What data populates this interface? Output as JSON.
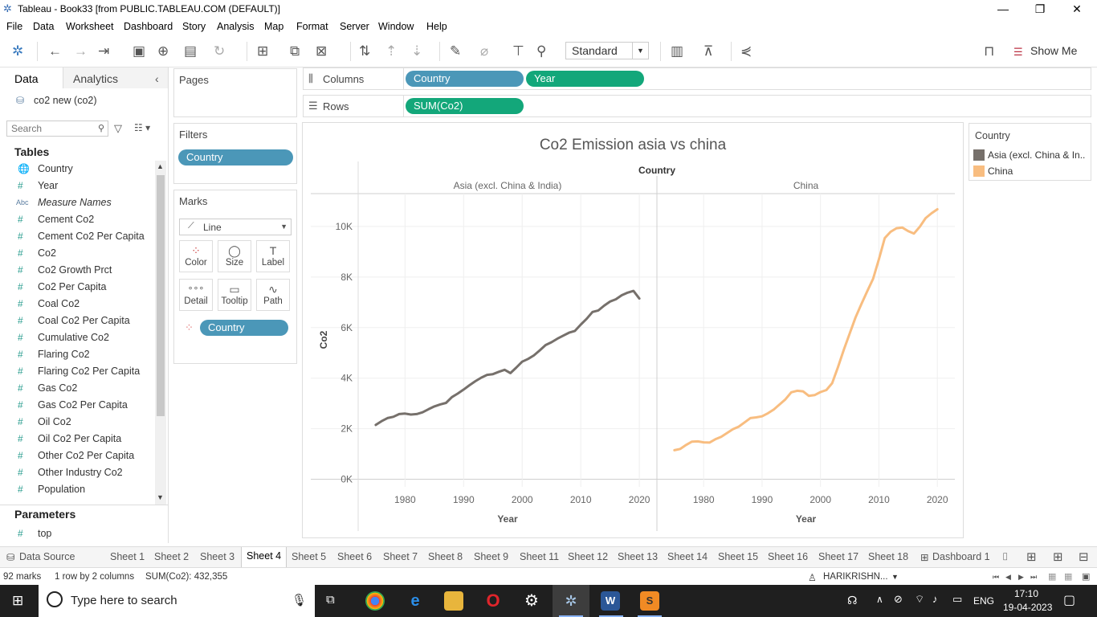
{
  "window": {
    "title": "Tableau - Book33 [from PUBLIC.TABLEAU.COM (DEFAULT)]",
    "controls": [
      "—",
      "❐",
      "✕"
    ]
  },
  "menu": [
    "File",
    "Data",
    "Worksheet",
    "Dashboard",
    "Story",
    "Analysis",
    "Map",
    "Format",
    "Server",
    "Window",
    "Help"
  ],
  "toolbar": {
    "fit_select": "Standard",
    "show_me": "Show Me"
  },
  "data_pane": {
    "tabs": [
      "Data",
      "Analytics"
    ],
    "collapse": "‹",
    "datasource": "co2 new (co2)",
    "search_placeholder": "Search",
    "tables_heading": "Tables",
    "fields": [
      {
        "icon": "🌐",
        "name": "Country"
      },
      {
        "icon": "#",
        "name": "Year"
      },
      {
        "icon": "Abc",
        "name": "Measure Names"
      },
      {
        "icon": "#",
        "name": "Cement Co2"
      },
      {
        "icon": "#",
        "name": "Cement Co2 Per Capita"
      },
      {
        "icon": "#",
        "name": "Co2"
      },
      {
        "icon": "#",
        "name": "Co2 Growth Prct"
      },
      {
        "icon": "#",
        "name": "Co2 Per Capita"
      },
      {
        "icon": "#",
        "name": "Coal Co2"
      },
      {
        "icon": "#",
        "name": "Coal Co2 Per Capita"
      },
      {
        "icon": "#",
        "name": "Cumulative Co2"
      },
      {
        "icon": "#",
        "name": "Flaring Co2"
      },
      {
        "icon": "#",
        "name": "Flaring Co2 Per Capita"
      },
      {
        "icon": "#",
        "name": "Gas Co2"
      },
      {
        "icon": "#",
        "name": "Gas Co2 Per Capita"
      },
      {
        "icon": "#",
        "name": "Oil Co2"
      },
      {
        "icon": "#",
        "name": "Oil Co2 Per Capita"
      },
      {
        "icon": "#",
        "name": "Other Co2 Per Capita"
      },
      {
        "icon": "#",
        "name": "Other Industry Co2"
      },
      {
        "icon": "#",
        "name": "Population"
      }
    ],
    "parameters_heading": "Parameters",
    "parameters": [
      {
        "icon": "#",
        "name": "top"
      }
    ]
  },
  "cards": {
    "pages": "Pages",
    "filters": "Filters",
    "filter_pill": "Country",
    "marks": "Marks",
    "mark_type": "Line",
    "mark_buttons": [
      {
        "glyph": "⁘",
        "label": "Color"
      },
      {
        "glyph": "◯",
        "label": "Size"
      },
      {
        "glyph": "T",
        "label": "Label"
      },
      {
        "glyph": "∘∘∘",
        "label": "Detail"
      },
      {
        "glyph": "▭",
        "label": "Tooltip"
      },
      {
        "glyph": "∿",
        "label": "Path"
      }
    ],
    "color_pill": "Country"
  },
  "shelves": {
    "columns_label": "Columns",
    "columns_pills": [
      "Country",
      "Year"
    ],
    "rows_label": "Rows",
    "rows_pills": [
      "SUM(Co2)"
    ]
  },
  "legend": {
    "title": "Country",
    "items": [
      {
        "label": "Asia (excl. China & In..",
        "color": "#76706b"
      },
      {
        "label": "China",
        "color": "#f8bd80"
      }
    ]
  },
  "chart_data": {
    "type": "line",
    "title": "Co2 Emission asia vs china",
    "header": "Country",
    "panels": [
      "Asia (excl. China & India)",
      "China"
    ],
    "xlabel": "Year",
    "ylabel": "Co2",
    "x_ticks": [
      1980,
      1990,
      2000,
      2010,
      2020
    ],
    "y_ticks": [
      0,
      2000,
      4000,
      6000,
      8000,
      10000
    ],
    "y_tick_labels": [
      "0K",
      "2K",
      "4K",
      "6K",
      "8K",
      "10K"
    ],
    "xlim": [
      1972,
      2023
    ],
    "ylim": [
      -300,
      11300
    ],
    "grid": true,
    "series": [
      {
        "name": "Asia (excl. China & India)",
        "color": "#76706b",
        "x": [
          1975,
          1976,
          1977,
          1978,
          1979,
          1980,
          1981,
          1982,
          1983,
          1984,
          1985,
          1986,
          1987,
          1988,
          1989,
          1990,
          1991,
          1992,
          1993,
          1994,
          1995,
          1996,
          1997,
          1998,
          1999,
          2000,
          2001,
          2002,
          2003,
          2004,
          2005,
          2006,
          2007,
          2008,
          2009,
          2010,
          2011,
          2012,
          2013,
          2014,
          2015,
          2016,
          2017,
          2018,
          2019,
          2020
        ],
        "values": [
          2150,
          2300,
          2420,
          2470,
          2580,
          2600,
          2560,
          2580,
          2650,
          2770,
          2880,
          2960,
          3020,
          3250,
          3390,
          3550,
          3720,
          3880,
          4020,
          4130,
          4160,
          4250,
          4330,
          4200,
          4420,
          4650,
          4760,
          4900,
          5100,
          5310,
          5420,
          5560,
          5680,
          5800,
          5870,
          6120,
          6350,
          6620,
          6680,
          6870,
          7030,
          7120,
          7280,
          7380,
          7450,
          7150
        ]
      },
      {
        "name": "China",
        "color": "#f8bd80",
        "x": [
          1975,
          1976,
          1977,
          1978,
          1979,
          1980,
          1981,
          1982,
          1983,
          1984,
          1985,
          1986,
          1987,
          1988,
          1989,
          1990,
          1991,
          1992,
          1993,
          1994,
          1995,
          1996,
          1997,
          1998,
          1999,
          2000,
          2001,
          2002,
          2003,
          2004,
          2005,
          2006,
          2007,
          2008,
          2009,
          2010,
          2011,
          2012,
          2013,
          2014,
          2015,
          2016,
          2017,
          2018,
          2019,
          2020
        ],
        "values": [
          1150,
          1200,
          1360,
          1490,
          1500,
          1460,
          1450,
          1580,
          1680,
          1830,
          1980,
          2080,
          2250,
          2420,
          2450,
          2490,
          2610,
          2760,
          2960,
          3160,
          3440,
          3500,
          3480,
          3300,
          3330,
          3450,
          3530,
          3800,
          4440,
          5130,
          5770,
          6400,
          6930,
          7440,
          7930,
          8700,
          9540,
          9790,
          9930,
          9960,
          9820,
          9720,
          9990,
          10330,
          10520,
          10680
        ]
      }
    ]
  },
  "sheet_tabs": [
    "Data Source",
    "Sheet 1",
    "Sheet 2",
    "Sheet 3",
    "Sheet 4",
    "Sheet 5",
    "Sheet 6",
    "Sheet 7",
    "Sheet 8",
    "Sheet 9",
    "Sheet 11",
    "Sheet 12",
    "Sheet 13",
    "Sheet 14",
    "Sheet 15",
    "Sheet 16",
    "Sheet 17",
    "Sheet 18",
    "Dashboard 1"
  ],
  "active_tab": "Sheet 4",
  "status": {
    "marks": "92 marks",
    "layout": "1 row by 2 columns",
    "sum": "SUM(Co2): 432,355",
    "user": "HARIKRISHN..."
  },
  "taskbar": {
    "search_placeholder": "Type here to search",
    "language": "ENG",
    "time": "17:10",
    "date": "19-04-2023"
  }
}
